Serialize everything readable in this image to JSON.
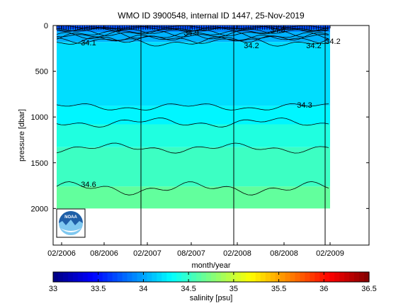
{
  "chart_data": {
    "type": "heatmap",
    "title": "WMO ID 3900548, internal ID 1447, 25-Nov-2019",
    "xlabel": "month/year",
    "ylabel": "pressure [dbar]",
    "x_ticks": [
      "02/2006",
      "08/2006",
      "02/2007",
      "08/2007",
      "02/2008",
      "08/2008",
      "02/2009"
    ],
    "y_ticks": [
      "0",
      "500",
      "1000",
      "1500",
      "2000"
    ],
    "ylim": [
      0,
      2400
    ],
    "y_reversed": true,
    "profile_period": [
      "02/2006",
      "12/2008"
    ],
    "max_profile_pressure": 2000,
    "contours": [
      {
        "value": 34.1,
        "depth_approx": 110
      },
      {
        "value": 34.2,
        "depth_approx": 120
      },
      {
        "value": 34.3,
        "depth_approx": 950
      },
      {
        "value": 34.6,
        "depth_approx": 1760
      },
      {
        "value": 34.8,
        "depth_approx": 40
      },
      {
        "value": 34.9,
        "depth_approx": 30
      }
    ],
    "contour_labels": [
      "34.1",
      "34.9",
      "34.2",
      "34.8",
      "34.2",
      "34.2",
      "34.3",
      "34.6",
      "6"
    ],
    "colorbar": {
      "label": "salinity [psu]",
      "min": 33,
      "max": 36.5,
      "ticks": [
        "33",
        "33.5",
        "34",
        "34.5",
        "35",
        "35.5",
        "36",
        "36.5"
      ]
    },
    "salinity_bands": [
      {
        "from": 0,
        "to": 70,
        "salinity": 33.9
      },
      {
        "from": 70,
        "to": 180,
        "salinity": 34.05
      },
      {
        "from": 180,
        "to": 880,
        "salinity": 34.2
      },
      {
        "from": 880,
        "to": 1080,
        "salinity": 34.28
      },
      {
        "from": 1080,
        "to": 1330,
        "salinity": 34.42
      },
      {
        "from": 1330,
        "to": 1760,
        "salinity": 34.52
      },
      {
        "from": 1760,
        "to": 2000,
        "salinity": 34.65
      }
    ],
    "vertical_markers": [
      "01/2007",
      "12/2007",
      "12/2008"
    ]
  },
  "logo": {
    "text": "NOAA",
    "colors": {
      "primary": "#1f5fa8",
      "light": "#7fc8f0"
    }
  }
}
